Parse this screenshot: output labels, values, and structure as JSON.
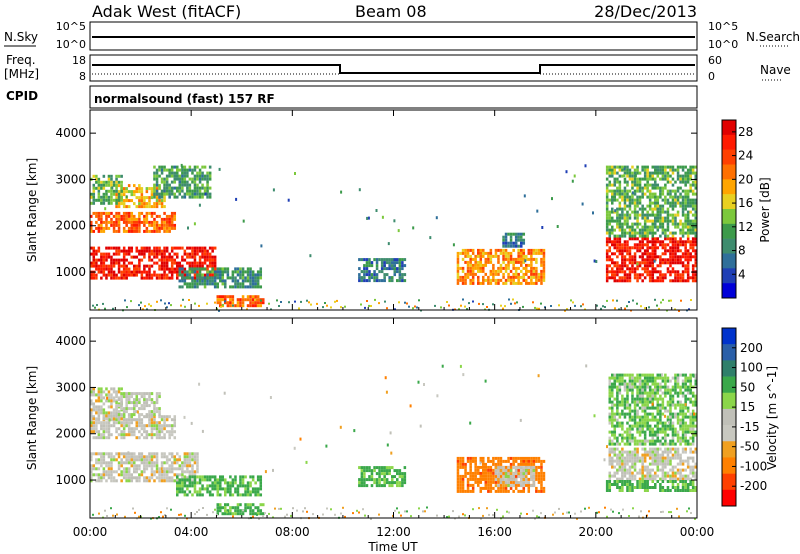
{
  "header": {
    "station": "Adak West (fitACF)",
    "beam": "Beam 08",
    "date": "28/Dec/2013"
  },
  "status_panels": {
    "nsky_label": "N.Sky",
    "nsky_ticks": [
      "10^5",
      "10^0"
    ],
    "nsearch_label": "N.Search",
    "nsearch_ticks": [
      "10^5",
      "10^0"
    ],
    "freq_label": "Freq.",
    "freq_unit": "[MHz]",
    "freq_ticks": [
      "18",
      "8"
    ],
    "nave_label": "Nave",
    "nave_ticks": [
      "60",
      "0"
    ],
    "cpid_label": "CPID",
    "cpid_text": "normalsound (fast) 157 RF"
  },
  "chart_data": [
    {
      "type": "heatmap",
      "title": "",
      "xlabel": "Time UT",
      "ylabel": "Slant Range [km]",
      "xlim": [
        0,
        24
      ],
      "ylim": [
        180,
        4500
      ],
      "x_ticks": [
        "00:00",
        "04:00",
        "08:00",
        "12:00",
        "16:00",
        "20:00",
        "00:00"
      ],
      "y_ticks": [
        1000,
        2000,
        3000,
        4000
      ],
      "colorbar": {
        "label": "Power [dB]",
        "ticks": [
          4,
          8,
          12,
          16,
          20,
          24,
          28
        ],
        "range": [
          0,
          30
        ],
        "colors": [
          "#0000d8",
          "#1f3fb5",
          "#2f6f9a",
          "#3e8c6e",
          "#3c9a4a",
          "#7cc83c",
          "#e8d020",
          "#ffa500",
          "#ff7000",
          "#ff4000",
          "#ff1a00",
          "#e00000"
        ]
      },
      "patches": [
        {
          "t0": 0.0,
          "t1": 5.0,
          "r0": 850,
          "r1": 1550,
          "power": 27
        },
        {
          "t0": 0.0,
          "t1": 3.4,
          "r0": 1900,
          "r1": 2300,
          "power": 22
        },
        {
          "t0": 1.0,
          "t1": 3.0,
          "r0": 2400,
          "r1": 2900,
          "power": 18
        },
        {
          "t0": 0.0,
          "t1": 1.3,
          "r0": 2500,
          "r1": 3100,
          "power": 12
        },
        {
          "t0": 2.5,
          "t1": 4.8,
          "r0": 2600,
          "r1": 3300,
          "power": 11
        },
        {
          "t0": 3.5,
          "t1": 6.8,
          "r0": 700,
          "r1": 1100,
          "power": 9
        },
        {
          "t0": 5.0,
          "t1": 6.8,
          "r0": 300,
          "r1": 500,
          "power": 22
        },
        {
          "t0": 10.6,
          "t1": 12.4,
          "r0": 800,
          "r1": 1300,
          "power": 8
        },
        {
          "t0": 14.5,
          "t1": 17.9,
          "r0": 750,
          "r1": 1500,
          "power": 20
        },
        {
          "t0": 16.3,
          "t1": 17.2,
          "r0": 1550,
          "r1": 1850,
          "power": 8
        },
        {
          "t0": 20.4,
          "t1": 24.0,
          "r0": 800,
          "r1": 1750,
          "power": 27
        },
        {
          "t0": 20.4,
          "t1": 24.0,
          "r0": 1800,
          "r1": 3300,
          "power": 12
        }
      ]
    },
    {
      "type": "heatmap",
      "title": "",
      "xlabel": "Time UT",
      "ylabel": "Slant Range [km]",
      "xlim": [
        0,
        24
      ],
      "ylim": [
        180,
        4500
      ],
      "x_ticks": [
        "00:00",
        "04:00",
        "08:00",
        "12:00",
        "16:00",
        "20:00",
        "00:00"
      ],
      "y_ticks": [
        1000,
        2000,
        3000,
        4000
      ],
      "colorbar": {
        "label": "Velocity [m s^-1]",
        "ticks": [
          "200",
          "100",
          "50",
          "15",
          "-15",
          "-50",
          "-100",
          "-200"
        ],
        "colors": [
          "#0033cc",
          "#2a5fa8",
          "#2f7f6a",
          "#3aa84a",
          "#8bd64a",
          "#c0c0b8",
          "#c8c8c0",
          "#f0a020",
          "#ff8000",
          "#ff4000",
          "#ff0000"
        ]
      },
      "patches": [
        {
          "t0": 0.0,
          "t1": 4.3,
          "r0": 1000,
          "r1": 1600,
          "vel": 0
        },
        {
          "t0": 0.0,
          "t1": 3.4,
          "r0": 1900,
          "r1": 2400,
          "vel": 0
        },
        {
          "t0": 0.0,
          "t1": 1.3,
          "r0": 2300,
          "r1": 3000,
          "vel": 0
        },
        {
          "t0": 1.0,
          "t1": 2.8,
          "r0": 2400,
          "r1": 2900,
          "vel": 5
        },
        {
          "t0": 3.4,
          "t1": 6.8,
          "r0": 700,
          "r1": 1100,
          "vel": 40
        },
        {
          "t0": 5.0,
          "t1": 6.8,
          "r0": 300,
          "r1": 500,
          "vel": 40
        },
        {
          "t0": 10.6,
          "t1": 12.4,
          "r0": 850,
          "r1": 1300,
          "vel": 40
        },
        {
          "t0": 14.5,
          "t1": 17.9,
          "r0": 750,
          "r1": 1500,
          "vel": -60
        },
        {
          "t0": 16.0,
          "t1": 17.6,
          "r0": 900,
          "r1": 1300,
          "vel": 0
        },
        {
          "t0": 20.5,
          "t1": 24.0,
          "r0": 1000,
          "r1": 1700,
          "vel": 0
        },
        {
          "t0": 20.4,
          "t1": 24.0,
          "r0": 800,
          "r1": 1000,
          "vel": 40
        },
        {
          "t0": 20.5,
          "t1": 24.0,
          "r0": 1800,
          "r1": 3300,
          "vel": 30
        }
      ]
    }
  ]
}
